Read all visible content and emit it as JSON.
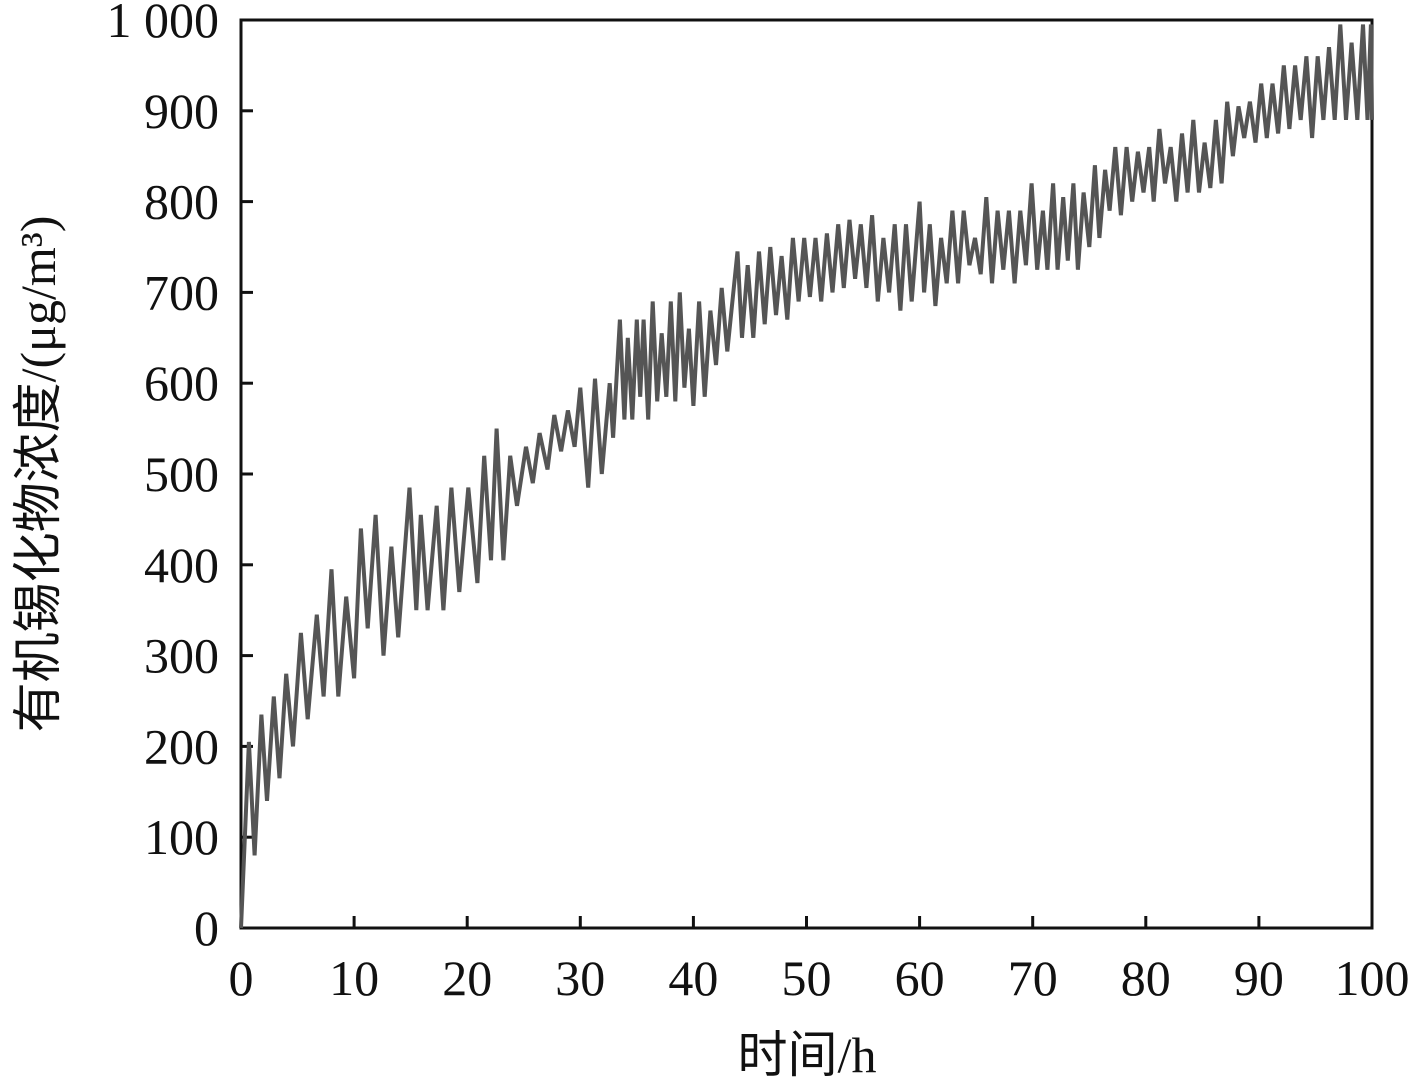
{
  "chart_data": {
    "type": "line",
    "xlabel": "时间/h",
    "ylabel": "有机锡化物浓度/(μg/m³)",
    "xlim": [
      0,
      100
    ],
    "xticks": [
      0,
      10,
      20,
      30,
      40,
      50,
      60,
      70,
      80,
      90,
      100
    ],
    "ylim": [
      0,
      1000
    ],
    "yticks": [
      0,
      100,
      200,
      300,
      400,
      500,
      600,
      700,
      800,
      900,
      {
        "value": 1000,
        "label": "1 000"
      }
    ],
    "series": [
      {
        "color": "#555555",
        "x": [
          0,
          0.7,
          1.2,
          1.8,
          2.3,
          2.9,
          3.4,
          4.0,
          4.6,
          5.3,
          5.9,
          6.7,
          7.3,
          8.0,
          8.6,
          9.3,
          10.0,
          10.6,
          11.2,
          11.9,
          12.6,
          13.3,
          13.9,
          14.9,
          15.5,
          15.9,
          16.5,
          17.3,
          17.9,
          18.6,
          19.3,
          20.1,
          20.9,
          21.5,
          22.1,
          22.6,
          23.2,
          23.8,
          24.4,
          25.2,
          25.8,
          26.4,
          27.1,
          27.7,
          28.3,
          28.9,
          29.5,
          30.0,
          30.7,
          31.3,
          31.9,
          32.6,
          32.9,
          33.5,
          33.9,
          34.2,
          34.6,
          35.0,
          35.3,
          35.6,
          36.0,
          36.4,
          36.8,
          37.2,
          37.6,
          38.0,
          38.4,
          38.8,
          39.2,
          39.6,
          40.0,
          40.5,
          41.0,
          41.5,
          42.0,
          42.5,
          43.0,
          43.9,
          44.3,
          44.8,
          45.3,
          45.8,
          46.3,
          46.8,
          47.3,
          47.8,
          48.3,
          48.8,
          49.3,
          49.8,
          50.3,
          50.8,
          51.3,
          51.8,
          52.3,
          52.8,
          53.3,
          53.8,
          54.3,
          54.8,
          55.3,
          55.8,
          56.3,
          56.8,
          57.3,
          57.8,
          58.3,
          58.8,
          59.3,
          60.0,
          60.4,
          60.9,
          61.4,
          61.9,
          62.4,
          62.9,
          63.4,
          63.9,
          64.4,
          64.9,
          65.4,
          65.9,
          66.4,
          66.9,
          67.4,
          67.9,
          68.4,
          68.9,
          69.4,
          69.9,
          70.4,
          70.9,
          71.3,
          71.8,
          72.2,
          72.7,
          73.1,
          73.6,
          74.0,
          74.5,
          75.0,
          75.5,
          75.9,
          76.4,
          76.8,
          77.3,
          77.8,
          78.3,
          78.8,
          79.3,
          79.8,
          80.3,
          80.7,
          81.2,
          81.7,
          82.2,
          82.7,
          83.2,
          83.7,
          84.2,
          84.7,
          85.2,
          85.7,
          86.2,
          86.7,
          87.2,
          87.7,
          88.2,
          88.7,
          89.2,
          89.7,
          90.2,
          90.7,
          91.2,
          91.7,
          92.2,
          92.7,
          93.2,
          93.7,
          94.2,
          94.7,
          95.2,
          95.7,
          96.2,
          96.7,
          97.2,
          97.7,
          98.2,
          98.7,
          99.2,
          99.6,
          99.9,
          100
        ],
        "values": [
          0,
          205,
          80,
          235,
          140,
          255,
          165,
          280,
          200,
          325,
          230,
          345,
          255,
          395,
          255,
          365,
          275,
          440,
          330,
          455,
          300,
          420,
          320,
          485,
          350,
          455,
          350,
          465,
          350,
          485,
          370,
          485,
          380,
          520,
          405,
          550,
          405,
          520,
          465,
          530,
          490,
          545,
          505,
          565,
          525,
          570,
          530,
          595,
          485,
          605,
          500,
          600,
          540,
          670,
          560,
          650,
          560,
          670,
          585,
          670,
          560,
          690,
          580,
          655,
          585,
          690,
          580,
          700,
          595,
          660,
          575,
          690,
          585,
          680,
          620,
          705,
          635,
          745,
          650,
          730,
          650,
          745,
          665,
          750,
          675,
          740,
          670,
          760,
          690,
          760,
          695,
          760,
          690,
          765,
          700,
          775,
          705,
          780,
          715,
          775,
          705,
          785,
          690,
          760,
          700,
          775,
          680,
          775,
          690,
          800,
          700,
          775,
          685,
          760,
          710,
          790,
          710,
          790,
          730,
          760,
          720,
          805,
          710,
          790,
          725,
          790,
          710,
          790,
          730,
          820,
          725,
          790,
          725,
          820,
          725,
          805,
          735,
          820,
          725,
          810,
          750,
          840,
          760,
          835,
          790,
          860,
          785,
          860,
          800,
          855,
          810,
          860,
          800,
          880,
          820,
          860,
          800,
          875,
          810,
          890,
          810,
          865,
          815,
          890,
          820,
          910,
          850,
          905,
          870,
          910,
          865,
          930,
          870,
          930,
          875,
          950,
          880,
          950,
          890,
          960,
          870,
          960,
          890,
          970,
          890,
          995,
          890,
          975,
          890,
          995,
          890,
          995,
          890
        ]
      }
    ]
  }
}
